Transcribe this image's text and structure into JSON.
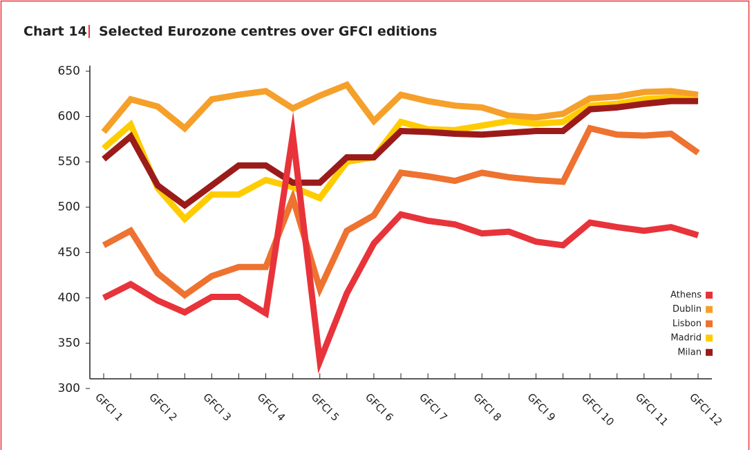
{
  "chart_data": {
    "type": "line",
    "label": "Chart 14",
    "title": "Selected Eurozone centres over GFCI editions",
    "categories": [
      "GFCI 1",
      null,
      "GFCI 2",
      null,
      "GFCI 3",
      null,
      "GFCI 4",
      null,
      "GFCI 5",
      null,
      "GFCI 6",
      null,
      "GFCI 7",
      null,
      "GFCI 8",
      null,
      "GFCI 9",
      null,
      "GFCI 10",
      null,
      "GFCI 11",
      null,
      "GFCI 12"
    ],
    "series": [
      {
        "name": "Athens",
        "color": "#e8333a",
        "values": [
          400,
          415,
          397,
          384,
          401,
          401,
          383,
          580,
          330,
          405,
          460,
          492,
          485,
          481,
          471,
          473,
          462,
          458,
          483,
          478,
          474,
          478,
          469
        ]
      },
      {
        "name": "Dublin",
        "color": "#f5a02a",
        "values": [
          583,
          619,
          611,
          587,
          619,
          624,
          628,
          609,
          623,
          635,
          595,
          624,
          617,
          612,
          610,
          601,
          599,
          603,
          620,
          622,
          627,
          628,
          624
        ]
      },
      {
        "name": "Lisbon",
        "color": "#ee7230",
        "values": [
          458,
          474,
          427,
          403,
          424,
          434,
          434,
          510,
          410,
          474,
          491,
          538,
          534,
          529,
          538,
          533,
          530,
          528,
          587,
          580,
          579,
          581,
          560
        ]
      },
      {
        "name": "Madrid",
        "color": "#ffcc00",
        "values": [
          565,
          591,
          521,
          487,
          514,
          514,
          530,
          522,
          510,
          550,
          555,
          594,
          586,
          585,
          590,
          595,
          592,
          594,
          612,
          614,
          619,
          621,
          618
        ]
      },
      {
        "name": "Milan",
        "color": "#9b1b1b",
        "values": [
          553,
          578,
          524,
          502,
          524,
          546,
          546,
          527,
          527,
          555,
          555,
          584,
          583,
          581,
          580,
          582,
          584,
          584,
          608,
          610,
          614,
          617,
          617
        ]
      }
    ],
    "ylim": [
      300,
      650
    ],
    "yticks": [
      300,
      350,
      400,
      450,
      500,
      550,
      600,
      650
    ],
    "legend": "lower right"
  }
}
